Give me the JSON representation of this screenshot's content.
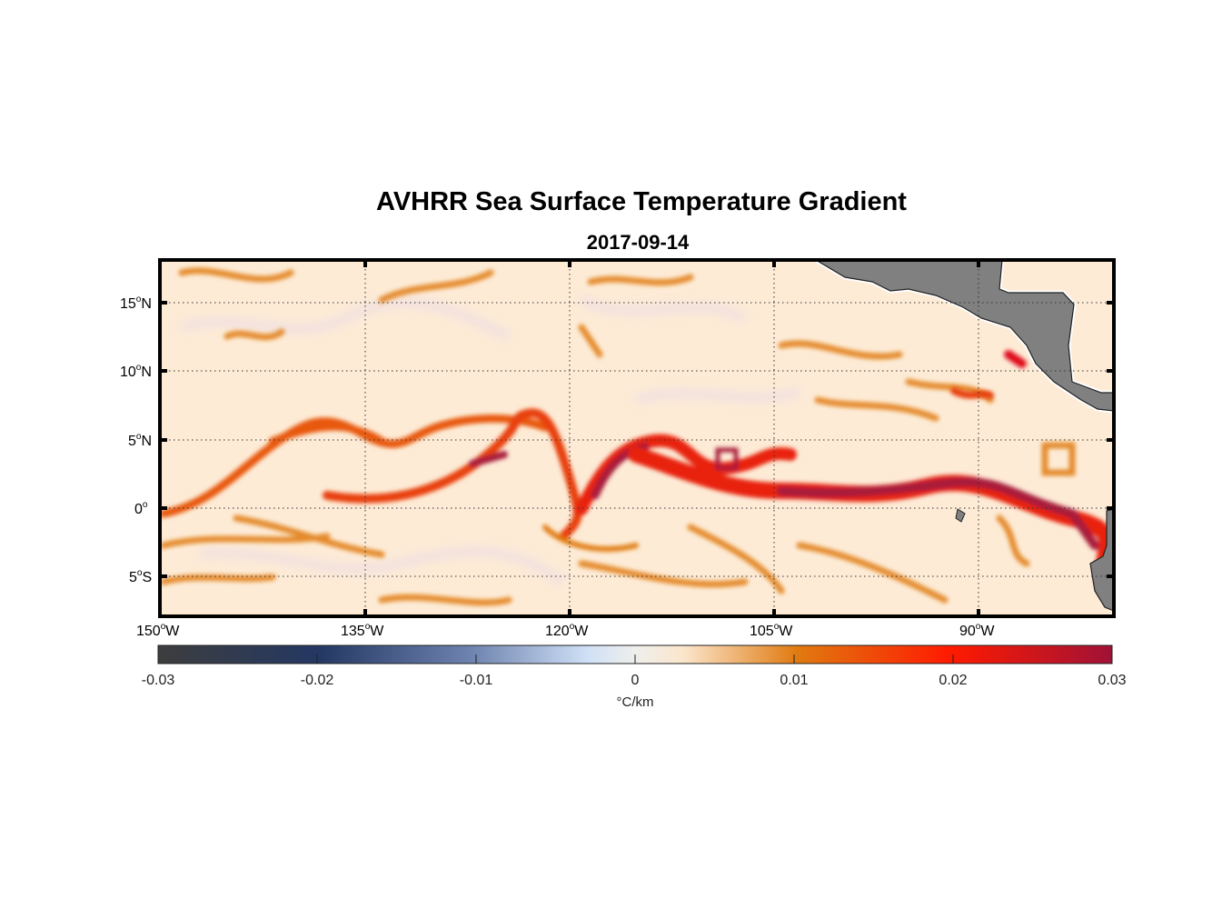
{
  "title": "AVHRR Sea Surface Temperature Gradient",
  "subtitle": "2017-09-14",
  "map": {
    "lon_range": [
      -150,
      -80
    ],
    "lat_range": [
      -8,
      18
    ],
    "lat_ticks": [
      {
        "num": "15",
        "hem": "N"
      },
      {
        "num": "10",
        "hem": "N"
      },
      {
        "num": "5",
        "hem": "N"
      },
      {
        "num": "0",
        "hem": ""
      },
      {
        "num": "5",
        "hem": "S"
      }
    ],
    "lon_ticks": [
      {
        "num": "150",
        "hem": "W"
      },
      {
        "num": "135",
        "hem": "W"
      },
      {
        "num": "120",
        "hem": "W"
      },
      {
        "num": "105",
        "hem": "W"
      },
      {
        "num": "90",
        "hem": "W"
      }
    ],
    "degree_symbol": "o",
    "land_color": "#808080",
    "ocean_background": "#fdebd6"
  },
  "colorbar": {
    "ticks": [
      "-0.03",
      "-0.02",
      "-0.01",
      "0",
      "0.01",
      "0.02",
      "0.03"
    ],
    "label": "°C/km",
    "range": [
      -0.03,
      0.03
    ],
    "colors": [
      "#3d3d3d",
      "#243864",
      "#7a8fb8",
      "#cfe0f6",
      "#fbe8d4",
      "#e07a10",
      "#ff1a00",
      "#a01236"
    ]
  }
}
